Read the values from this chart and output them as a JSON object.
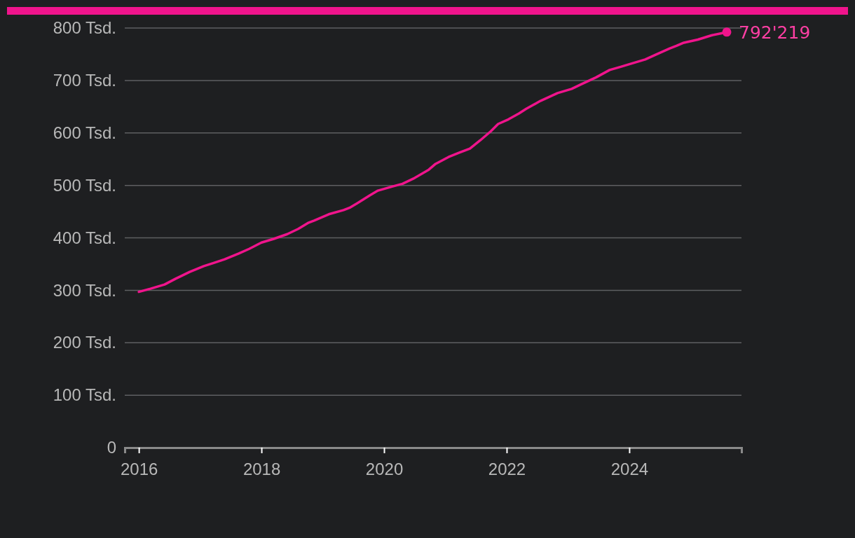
{
  "chart_data": {
    "type": "line",
    "xlim": [
      2015.77,
      2025.83
    ],
    "xticks": [
      2016,
      2018,
      2020,
      2022,
      2024
    ],
    "ylim": [
      0,
      800
    ],
    "yticks": [
      0,
      {
        "value": 100,
        "label": "100 Tsd."
      },
      {
        "value": 200,
        "label": "200 Tsd."
      },
      {
        "value": 300,
        "label": "300 Tsd."
      },
      {
        "value": 400,
        "label": "400 Tsd."
      },
      {
        "value": 500,
        "label": "500 Tsd."
      },
      {
        "value": 600,
        "label": "600 Tsd."
      },
      {
        "value": 700,
        "label": "700 Tsd."
      },
      {
        "value": 800,
        "label": "800 Tsd."
      }
    ],
    "grid": "y",
    "annotations": [
      {
        "text": "792'219",
        "x": 2025.59,
        "y": 792.219
      }
    ],
    "series": [
      {
        "color": "#f0148c",
        "x": [
          2016.0,
          2016.19,
          2016.42,
          2016.6,
          2016.83,
          2017.06,
          2017.22,
          2017.4,
          2017.63,
          2017.8,
          2018.0,
          2018.2,
          2018.42,
          2018.6,
          2018.77,
          2018.86,
          2019.1,
          2019.34,
          2019.45,
          2019.62,
          2019.77,
          2019.9,
          2020.14,
          2020.3,
          2020.48,
          2020.73,
          2020.84,
          2021.05,
          2021.22,
          2021.4,
          2021.57,
          2021.74,
          2021.86,
          2022.03,
          2022.2,
          2022.32,
          2022.55,
          2022.83,
          2023.06,
          2023.22,
          2023.46,
          2023.68,
          2023.86,
          2024.03,
          2024.26,
          2024.43,
          2024.66,
          2024.77,
          2024.89,
          2025.12,
          2025.34,
          2025.59
        ],
        "values": [
          297,
          303,
          311,
          322,
          335,
          346,
          352,
          359,
          370,
          379,
          391,
          398,
          407,
          417,
          429,
          433,
          445,
          453,
          458,
          470,
          481,
          490,
          498,
          503,
          513,
          530,
          541,
          554,
          562,
          570,
          586,
          603,
          617,
          626,
          637,
          646,
          661,
          676,
          684,
          693,
          706,
          720,
          726,
          732,
          740,
          749,
          761,
          766,
          772,
          778,
          786,
          792
        ]
      }
    ]
  }
}
